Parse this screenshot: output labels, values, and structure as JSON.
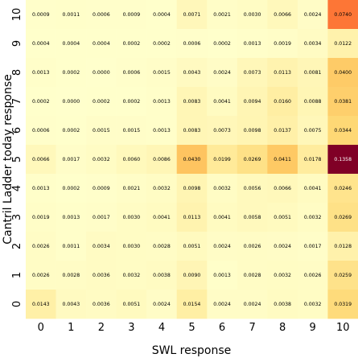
{
  "chart_data": {
    "type": "heatmap",
    "title": "",
    "xlabel": "SWL response",
    "ylabel": "Cantril Ladder today response",
    "x_categories": [
      "0",
      "1",
      "2",
      "3",
      "4",
      "5",
      "6",
      "7",
      "8",
      "9",
      "10"
    ],
    "y_categories": [
      "10",
      "9",
      "8",
      "7",
      "6",
      "5",
      "4",
      "3",
      "2",
      "1",
      "0"
    ],
    "colormap": "YlOrRd",
    "vmin": 0.0,
    "vmax": 0.1358,
    "values": [
      [
        "0.0009",
        "0.0011",
        "0.0006",
        "0.0009",
        "0.0004",
        "0.0071",
        "0.0021",
        "0.0030",
        "0.0066",
        "0.0024",
        "0.0740"
      ],
      [
        "0.0004",
        "0.0004",
        "0.0004",
        "0.0002",
        "0.0002",
        "0.0006",
        "0.0002",
        "0.0013",
        "0.0019",
        "0.0034",
        "0.0122"
      ],
      [
        "0.0013",
        "0.0002",
        "0.0000",
        "0.0006",
        "0.0015",
        "0.0043",
        "0.0024",
        "0.0073",
        "0.0113",
        "0.0081",
        "0.0400"
      ],
      [
        "0.0002",
        "0.0000",
        "0.0002",
        "0.0002",
        "0.0013",
        "0.0083",
        "0.0041",
        "0.0094",
        "0.0160",
        "0.0088",
        "0.0381"
      ],
      [
        "0.0006",
        "0.0002",
        "0.0015",
        "0.0015",
        "0.0013",
        "0.0083",
        "0.0073",
        "0.0098",
        "0.0137",
        "0.0075",
        "0.0344"
      ],
      [
        "0.0066",
        "0.0017",
        "0.0032",
        "0.0060",
        "0.0086",
        "0.0430",
        "0.0199",
        "0.0269",
        "0.0411",
        "0.0178",
        "0.1358"
      ],
      [
        "0.0013",
        "0.0002",
        "0.0009",
        "0.0021",
        "0.0032",
        "0.0098",
        "0.0032",
        "0.0056",
        "0.0066",
        "0.0041",
        "0.0246"
      ],
      [
        "0.0019",
        "0.0013",
        "0.0017",
        "0.0030",
        "0.0041",
        "0.0113",
        "0.0041",
        "0.0058",
        "0.0051",
        "0.0032",
        "0.0269"
      ],
      [
        "0.0026",
        "0.0011",
        "0.0034",
        "0.0030",
        "0.0028",
        "0.0051",
        "0.0024",
        "0.0026",
        "0.0024",
        "0.0017",
        "0.0128"
      ],
      [
        "0.0026",
        "0.0028",
        "0.0036",
        "0.0032",
        "0.0038",
        "0.0090",
        "0.0013",
        "0.0028",
        "0.0032",
        "0.0026",
        "0.0259"
      ],
      [
        "0.0143",
        "0.0043",
        "0.0036",
        "0.0051",
        "0.0024",
        "0.0154",
        "0.0024",
        "0.0024",
        "0.0038",
        "0.0032",
        "0.0319"
      ]
    ]
  }
}
